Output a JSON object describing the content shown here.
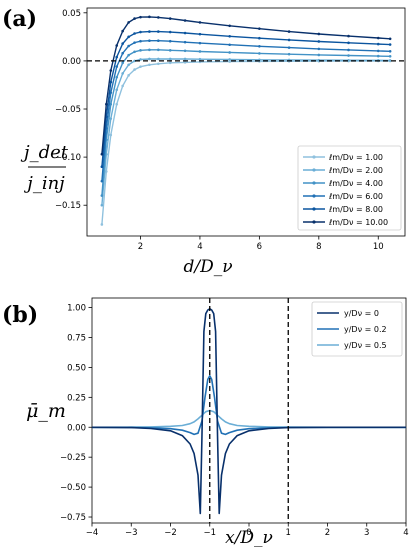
{
  "chart_data": [
    {
      "panel_label": "(a)",
      "type": "line",
      "xlabel": "d/D_ν",
      "ylabel_top": "j_det",
      "ylabel_bottom": "j_inj",
      "xlim": [
        0.2,
        10.9
      ],
      "ylim": [
        -0.182,
        0.055
      ],
      "xticks": [
        2,
        4,
        6,
        8,
        10
      ],
      "yticks": [
        -0.15,
        -0.1,
        -0.05,
        0.0,
        0.05
      ],
      "ytick_labels": [
        "−0.15",
        "−0.10",
        "−0.05",
        "0.00",
        "0.05"
      ],
      "hline": 0.0,
      "legend_position": "lower-right",
      "colors": [
        "#8fc1de",
        "#6aaed6",
        "#4292c6",
        "#2171b5",
        "#0b559f",
        "#08306b"
      ],
      "series": [
        {
          "name": "ℓm/Dν = 1.00",
          "x": [
            0.7,
            0.85,
            1.0,
            1.2,
            1.4,
            1.6,
            1.8,
            2.0,
            2.3,
            2.6,
            3.0,
            3.5,
            4.0,
            5.0,
            6.0,
            7.0,
            8.0,
            9.0,
            10.0,
            10.4
          ],
          "y": [
            -0.17,
            -0.115,
            -0.077,
            -0.045,
            -0.026,
            -0.015,
            -0.009,
            -0.006,
            -0.004,
            -0.003,
            -0.002,
            -0.0015,
            -0.001,
            -0.0007,
            -0.0005,
            -0.0004,
            -0.0003,
            -0.0002,
            -0.0001,
            -0.0001
          ]
        },
        {
          "name": "ℓm/Dν = 2.00",
          "x": [
            0.7,
            0.85,
            1.0,
            1.2,
            1.4,
            1.6,
            1.8,
            2.0,
            2.3,
            2.6,
            3.0,
            3.5,
            4.0,
            5.0,
            6.0,
            7.0,
            8.0,
            9.0,
            10.0,
            10.4
          ],
          "y": [
            -0.15,
            -0.097,
            -0.06,
            -0.03,
            -0.013,
            -0.004,
            0.0,
            0.0015,
            0.002,
            0.002,
            0.002,
            0.002,
            0.0018,
            0.0015,
            0.0012,
            0.001,
            0.0008,
            0.0007,
            0.0006,
            0.0005
          ]
        },
        {
          "name": "ℓm/Dν = 4.00",
          "x": [
            0.7,
            0.85,
            1.0,
            1.2,
            1.4,
            1.6,
            1.8,
            2.0,
            2.3,
            2.6,
            3.0,
            3.5,
            4.0,
            5.0,
            6.0,
            7.0,
            8.0,
            9.0,
            10.0,
            10.4
          ],
          "y": [
            -0.14,
            -0.082,
            -0.045,
            -0.017,
            -0.002,
            0.006,
            0.0095,
            0.011,
            0.0115,
            0.0115,
            0.011,
            0.0105,
            0.0098,
            0.0088,
            0.0078,
            0.007,
            0.0062,
            0.0056,
            0.005,
            0.0048
          ]
        },
        {
          "name": "ℓm/Dν = 6.00",
          "x": [
            0.7,
            0.85,
            1.0,
            1.2,
            1.4,
            1.6,
            1.8,
            2.0,
            2.3,
            2.6,
            3.0,
            3.5,
            4.0,
            5.0,
            6.0,
            7.0,
            8.0,
            9.0,
            10.0,
            10.4
          ],
          "y": [
            -0.125,
            -0.07,
            -0.033,
            -0.006,
            0.008,
            0.0155,
            0.019,
            0.0205,
            0.021,
            0.021,
            0.0205,
            0.0195,
            0.0185,
            0.0168,
            0.0152,
            0.0138,
            0.0125,
            0.0114,
            0.0104,
            0.01
          ]
        },
        {
          "name": "ℓm/Dν = 8.00",
          "x": [
            0.7,
            0.85,
            1.0,
            1.2,
            1.4,
            1.6,
            1.8,
            2.0,
            2.3,
            2.6,
            3.0,
            3.5,
            4.0,
            5.0,
            6.0,
            7.0,
            8.0,
            9.0,
            10.0,
            10.4
          ],
          "y": [
            -0.11,
            -0.058,
            -0.022,
            0.004,
            0.018,
            0.025,
            0.0285,
            0.03,
            0.0305,
            0.0305,
            0.03,
            0.029,
            0.0278,
            0.0256,
            0.0236,
            0.0218,
            0.0202,
            0.0188,
            0.0175,
            0.017
          ]
        },
        {
          "name": "ℓm/Dν = 10.00",
          "x": [
            0.7,
            0.85,
            1.0,
            1.2,
            1.4,
            1.6,
            1.8,
            2.0,
            2.3,
            2.6,
            3.0,
            3.5,
            4.0,
            5.0,
            6.0,
            7.0,
            8.0,
            9.0,
            10.0,
            10.4
          ],
          "y": [
            -0.097,
            -0.045,
            -0.01,
            0.016,
            0.031,
            0.04,
            0.044,
            0.0455,
            0.0458,
            0.0452,
            0.044,
            0.042,
            0.04,
            0.0365,
            0.0335,
            0.0305,
            0.028,
            0.0258,
            0.0238,
            0.023
          ]
        }
      ]
    },
    {
      "panel_label": "(b)",
      "type": "line",
      "xlabel": "x/D_ν",
      "ylabel": "μ̄_m",
      "xlim": [
        -4,
        4
      ],
      "ylim": [
        -0.8,
        1.08
      ],
      "xticks": [
        -4,
        -3,
        -2,
        -1,
        0,
        1,
        2,
        3,
        4
      ],
      "xtick_labels": [
        "−4",
        "−3",
        "−2",
        "−1",
        "0",
        "1",
        "2",
        "3",
        "4"
      ],
      "yticks": [
        -0.75,
        -0.5,
        -0.25,
        0.0,
        0.25,
        0.5,
        0.75,
        1.0
      ],
      "ytick_labels": [
        "−0.75",
        "−0.50",
        "−0.25",
        "0.00",
        "0.25",
        "0.50",
        "0.75",
        "1.00"
      ],
      "vlines": [
        -1,
        1
      ],
      "legend_position": "top-right",
      "colors": [
        "#08306b",
        "#2171b5",
        "#6baed6"
      ],
      "series": [
        {
          "name": "y/Dν = 0",
          "x": [
            -4,
            -3,
            -2.5,
            -2,
            -1.7,
            -1.5,
            -1.4,
            -1.3,
            -1.24,
            -1.2,
            -1.15,
            -1.1,
            -1.05,
            -1.0,
            -0.95,
            -0.9,
            -0.85,
            -0.8,
            -0.76,
            -0.7,
            -0.6,
            -0.5,
            -0.3,
            0,
            0.5,
            1,
            2,
            3,
            4
          ],
          "y": [
            0,
            -0.003,
            -0.01,
            -0.03,
            -0.07,
            -0.14,
            -0.22,
            -0.4,
            -0.72,
            -0.1,
            0.8,
            0.95,
            0.98,
            0.99,
            0.98,
            0.95,
            0.8,
            -0.1,
            -0.72,
            -0.4,
            -0.22,
            -0.14,
            -0.07,
            -0.03,
            -0.01,
            -0.003,
            0,
            0,
            0
          ]
        },
        {
          "name": "y/Dν = 0.2",
          "x": [
            -4,
            -3,
            -2.5,
            -2,
            -1.7,
            -1.5,
            -1.4,
            -1.3,
            -1.2,
            -1.12,
            -1.05,
            -1.0,
            -0.95,
            -0.88,
            -0.8,
            -0.7,
            -0.6,
            -0.5,
            -0.3,
            0,
            0.5,
            1,
            2,
            3,
            4
          ],
          "y": [
            0,
            -0.002,
            -0.005,
            -0.012,
            -0.025,
            -0.045,
            -0.06,
            -0.05,
            0.05,
            0.25,
            0.4,
            0.43,
            0.4,
            0.25,
            0.05,
            -0.05,
            -0.06,
            -0.045,
            -0.025,
            -0.012,
            -0.005,
            -0.002,
            0,
            0,
            0
          ]
        },
        {
          "name": "y/Dν = 0.5",
          "x": [
            -4,
            -3,
            -2.5,
            -2,
            -1.7,
            -1.5,
            -1.4,
            -1.3,
            -1.2,
            -1.1,
            -1.0,
            -0.9,
            -0.8,
            -0.7,
            -0.6,
            -0.5,
            -0.3,
            0,
            0.5,
            1,
            2,
            3,
            4
          ],
          "y": [
            0,
            0.001,
            0.003,
            0.008,
            0.015,
            0.03,
            0.045,
            0.07,
            0.1,
            0.13,
            0.14,
            0.13,
            0.1,
            0.07,
            0.045,
            0.03,
            0.015,
            0.008,
            0.003,
            0.001,
            0,
            0,
            0
          ]
        }
      ]
    }
  ]
}
